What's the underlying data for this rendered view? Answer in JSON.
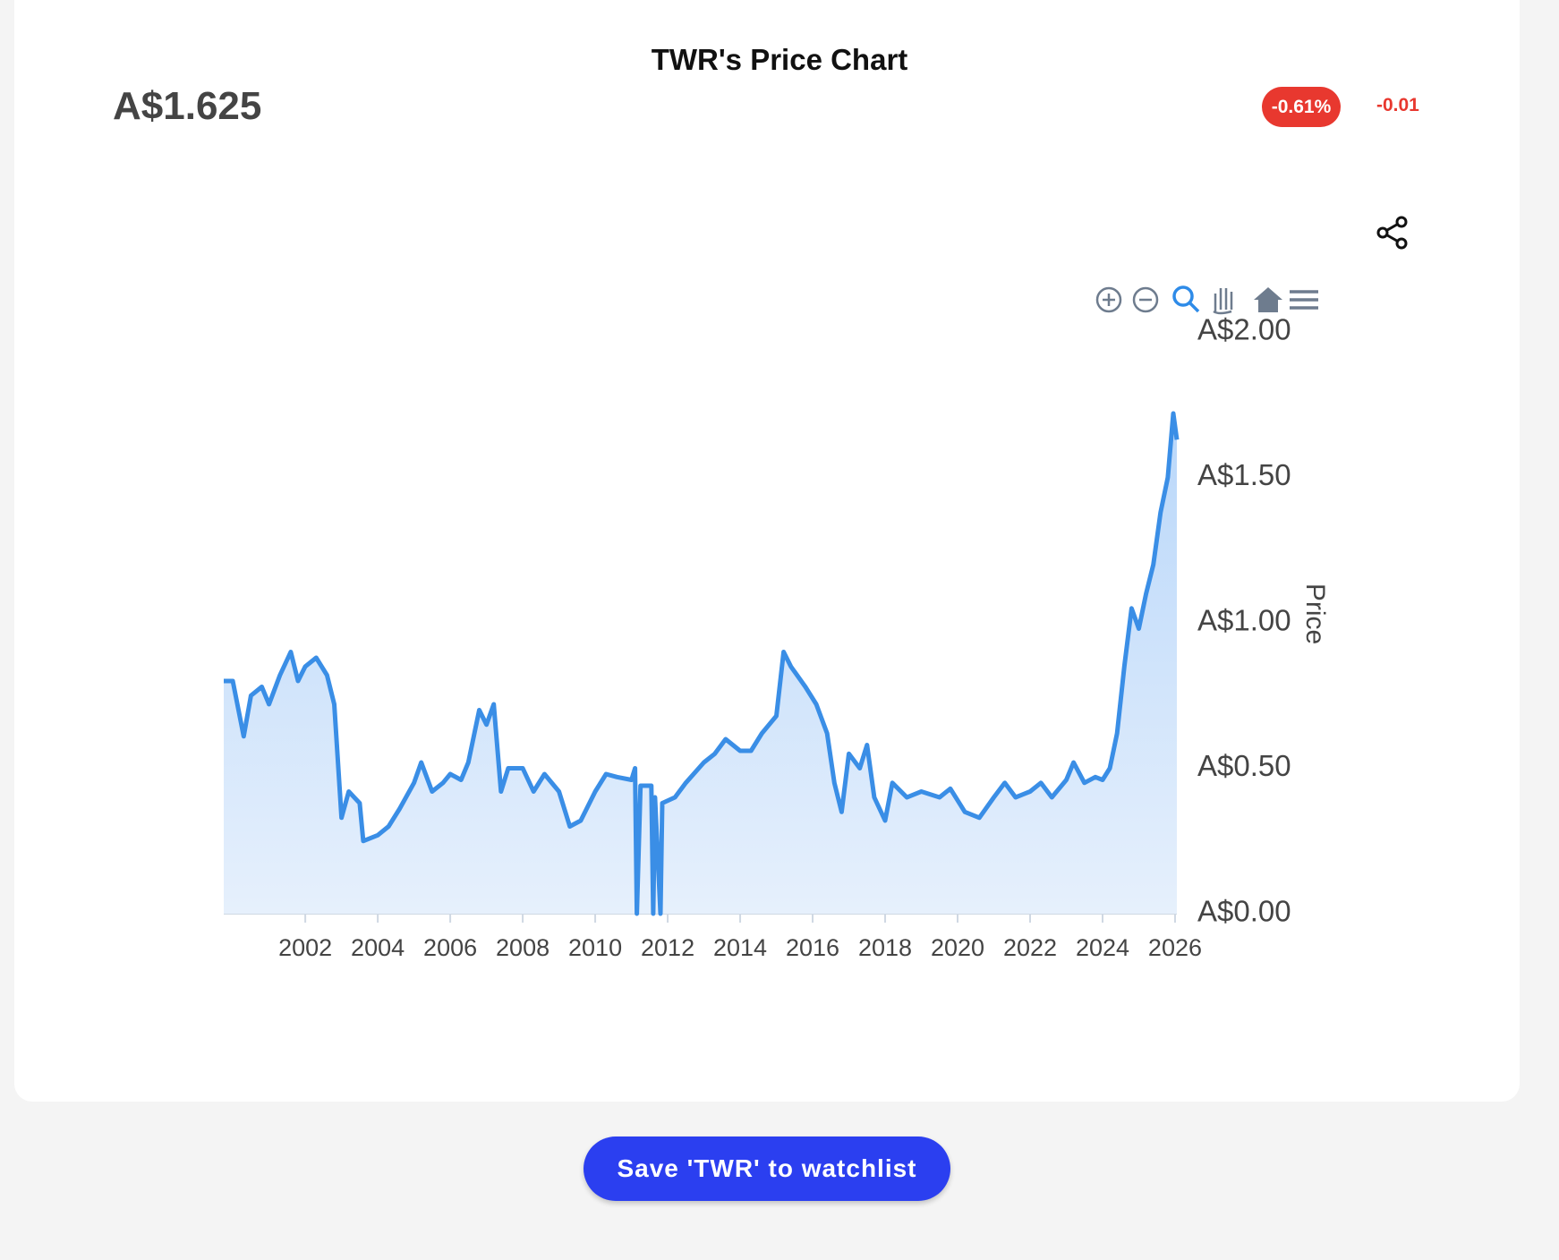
{
  "header": {
    "price": "A$1.625",
    "change_pct": "-0.61%",
    "change": "-0.01"
  },
  "chart_data": {
    "type": "area",
    "title": "TWR's Price Chart",
    "y_label": "Price",
    "color": "#3a8ee6",
    "xlim": [
      1999.75,
      2026.05
    ],
    "xticks": [
      2002,
      2004,
      2006,
      2008,
      2010,
      2012,
      2014,
      2016,
      2018,
      2020,
      2022,
      2024,
      2026
    ],
    "ylim": [
      0,
      2
    ],
    "yticks": [
      {
        "value": 0,
        "label": "A$0.00"
      },
      {
        "value": 0.5,
        "label": "A$0.50"
      },
      {
        "value": 1,
        "label": "A$1.00"
      },
      {
        "value": 1.5,
        "label": "A$1.50"
      },
      {
        "value": 2,
        "label": "A$2.00"
      }
    ],
    "series": [
      {
        "name": "Price",
        "x": [
          1999.75,
          2000.0,
          2000.3,
          2000.5,
          2000.8,
          2001.0,
          2001.3,
          2001.6,
          2001.8,
          2002.0,
          2002.3,
          2002.6,
          2002.8,
          2003.0,
          2003.2,
          2003.5,
          2003.6,
          2004.0,
          2004.3,
          2004.6,
          2005.0,
          2005.2,
          2005.5,
          2005.8,
          2006.0,
          2006.3,
          2006.5,
          2006.8,
          2007.0,
          2007.2,
          2007.4,
          2007.6,
          2008.0,
          2008.3,
          2008.6,
          2009.0,
          2009.3,
          2009.6,
          2010.0,
          2010.3,
          2010.6,
          2011.0,
          2011.1,
          2011.15,
          2011.25,
          2011.55,
          2011.6,
          2011.65,
          2011.8,
          2011.85,
          2012.2,
          2012.5,
          2013.0,
          2013.3,
          2013.6,
          2014.0,
          2014.3,
          2014.6,
          2015.0,
          2015.2,
          2015.4,
          2015.8,
          2016.1,
          2016.4,
          2016.6,
          2016.8,
          2017.0,
          2017.3,
          2017.5,
          2017.7,
          2018.0,
          2018.2,
          2018.6,
          2019.0,
          2019.5,
          2019.8,
          2020.2,
          2020.6,
          2021.0,
          2021.3,
          2021.6,
          2022.0,
          2022.3,
          2022.6,
          2023.0,
          2023.2,
          2023.5,
          2023.8,
          2024.0,
          2024.2,
          2024.4,
          2024.6,
          2024.8,
          2025.0,
          2025.2,
          2025.4,
          2025.6,
          2025.8,
          2025.95,
          2026.05
        ],
        "values": [
          0.8,
          0.8,
          0.61,
          0.75,
          0.78,
          0.72,
          0.82,
          0.9,
          0.8,
          0.85,
          0.88,
          0.82,
          0.72,
          0.33,
          0.42,
          0.38,
          0.25,
          0.27,
          0.3,
          0.36,
          0.45,
          0.52,
          0.42,
          0.45,
          0.48,
          0.46,
          0.52,
          0.7,
          0.65,
          0.72,
          0.42,
          0.5,
          0.5,
          0.42,
          0.48,
          0.42,
          0.3,
          0.32,
          0.42,
          0.48,
          0.47,
          0.46,
          0.5,
          0,
          0.44,
          0.44,
          0,
          0.4,
          0,
          0.38,
          0.4,
          0.45,
          0.52,
          0.55,
          0.6,
          0.56,
          0.56,
          0.62,
          0.68,
          0.9,
          0.85,
          0.78,
          0.72,
          0.62,
          0.45,
          0.35,
          0.55,
          0.5,
          0.58,
          0.4,
          0.32,
          0.45,
          0.4,
          0.42,
          0.4,
          0.43,
          0.35,
          0.33,
          0.4,
          0.45,
          0.4,
          0.42,
          0.45,
          0.4,
          0.46,
          0.52,
          0.45,
          0.47,
          0.46,
          0.5,
          0.62,
          0.85,
          1.05,
          0.98,
          1.1,
          1.2,
          1.38,
          1.5,
          1.72,
          1.63
        ]
      }
    ]
  },
  "button": {
    "label": "Save 'TWR' to watchlist"
  }
}
